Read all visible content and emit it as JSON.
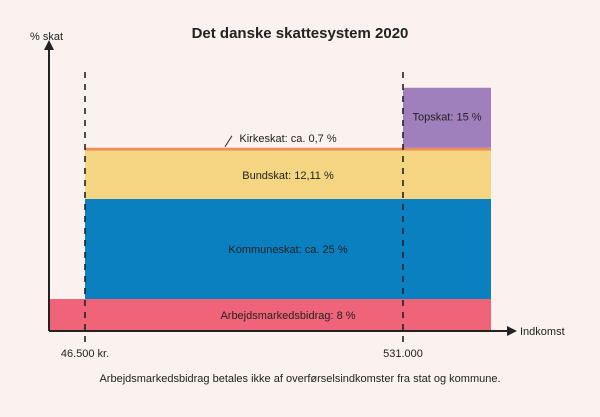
{
  "chart_data": {
    "type": "area",
    "title": "Det danske skattesystem 2020",
    "ylabel": "% skat",
    "xlabel": "Indkomst",
    "x_ticks": [
      "46.500 kr.",
      "531.000"
    ],
    "x_thresholds": [
      46500,
      531000
    ],
    "layers": [
      {
        "name": "Arbejdsmarkedsbidrag: 8 %",
        "rate": 8,
        "from": 0,
        "color": "#ef6479"
      },
      {
        "name": "Kommuneskat: ca. 25 %",
        "rate": 25,
        "from": 46500,
        "color": "#0b80c0"
      },
      {
        "name": "Bundskat: 12,11 %",
        "rate": 12.11,
        "from": 46500,
        "color": "#f4d682"
      },
      {
        "name": "Kirkeskat: ca. 0,7 %",
        "rate": 0.7,
        "from": 46500,
        "color": "#ee8d55"
      },
      {
        "name": "Topskat: 15 %",
        "rate": 15,
        "from": 531000,
        "color": "#a07fbd"
      }
    ],
    "note": "Arbejdsmarkedsbidrag betales ikke af overførselsindkomster fra stat og kommune."
  }
}
